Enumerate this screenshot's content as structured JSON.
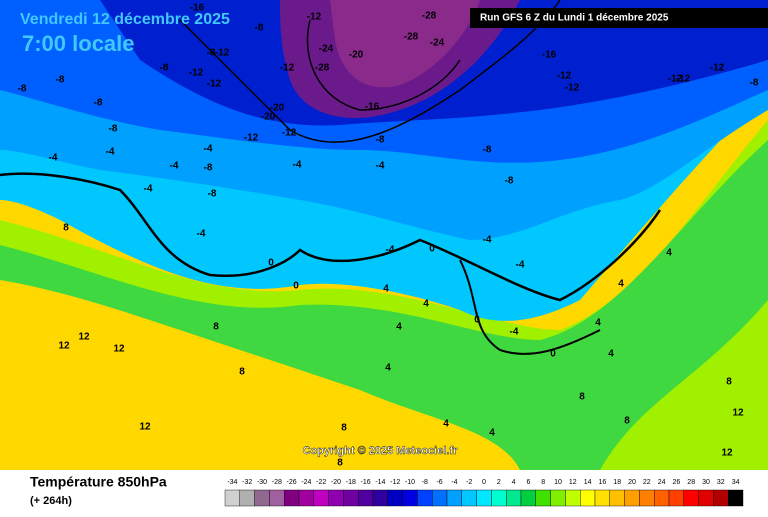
{
  "header": {
    "date": "Vendredi 12 décembre 2025",
    "time": "7:00 locale",
    "run": "Run GFS 6 Z du Lundi 1 décembre 2025"
  },
  "footer": {
    "title": "Température 850hPa",
    "lead": "(+ 264h)",
    "copyright": "Copyright © 2025 Meteociel.fr"
  },
  "colorbar": {
    "ticks": [
      -34,
      -32,
      -30,
      -28,
      -26,
      -24,
      -22,
      -20,
      -18,
      -16,
      -14,
      -12,
      -10,
      -8,
      -6,
      -4,
      -2,
      0,
      2,
      4,
      6,
      8,
      10,
      12,
      14,
      16,
      18,
      20,
      22,
      24,
      26,
      28,
      30,
      32,
      34
    ],
    "colors": [
      "#d0d0d0",
      "#b0b0b0",
      "#906890",
      "#a060a0",
      "#800080",
      "#a000a0",
      "#c000c0",
      "#9000b0",
      "#7000a0",
      "#5000a0",
      "#3000a0",
      "#0000c0",
      "#0000e0",
      "#0040ff",
      "#0070ff",
      "#00a0ff",
      "#00c8ff",
      "#00e8ff",
      "#00ffd0",
      "#00e890",
      "#00d040",
      "#40e000",
      "#80f000",
      "#c0ff00",
      "#ffff00",
      "#ffe000",
      "#ffc000",
      "#ffa000",
      "#ff8000",
      "#ff6000",
      "#ff4000",
      "#ff0000",
      "#e00000",
      "#b00000",
      "#000000"
    ]
  },
  "contour_labels": [
    "-16",
    "-12",
    "-8",
    "-8",
    "-12",
    "-8",
    "-12",
    "-12",
    "-12",
    "-24",
    "-28",
    "-20",
    "-28",
    "-28",
    "-24",
    "-16",
    "-20",
    "-20",
    "-12",
    "-12",
    "-8",
    "-8",
    "-8",
    "-8",
    "-8",
    "-8",
    "-4",
    "-4",
    "-4",
    "-4",
    "-4",
    "-8",
    "-8",
    "-8",
    "-4",
    "-4",
    "-4",
    "0",
    "0",
    "8",
    "8",
    "12",
    "12",
    "12",
    "8",
    "12",
    "4",
    "4",
    "4",
    "0",
    "-4",
    "-4",
    "-4",
    "0",
    "-4",
    "0",
    "4",
    "4",
    "4",
    "4",
    "8",
    "8",
    "8",
    "12",
    "12",
    "8",
    "4",
    "4",
    "-16",
    "-12",
    "-12",
    "-12",
    "-12",
    "-12",
    "-8",
    "4",
    "8"
  ]
}
